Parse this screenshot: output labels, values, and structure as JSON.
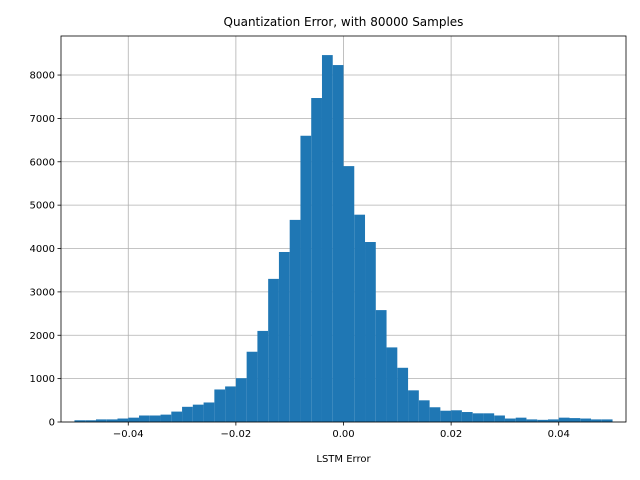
{
  "chart_data": {
    "type": "bar",
    "title": "Quantization Error, with 80000 Samples",
    "xlabel": "LSTM Error",
    "ylabel": "",
    "xlim": [
      -0.0525,
      0.0525
    ],
    "ylim": [
      0,
      8900
    ],
    "grid": true,
    "bar_color": "#1f77b4",
    "bin_width": 0.002,
    "x_ticks": [
      -0.04,
      -0.02,
      0.0,
      0.02,
      0.04
    ],
    "x_tick_labels": [
      "−0.04",
      "−0.02",
      "0.00",
      "0.02",
      "0.04"
    ],
    "y_ticks": [
      0,
      1000,
      2000,
      3000,
      4000,
      5000,
      6000,
      7000,
      8000
    ],
    "y_tick_labels": [
      "0",
      "1000",
      "2000",
      "3000",
      "4000",
      "5000",
      "6000",
      "7000",
      "8000"
    ],
    "bins": [
      {
        "x0": -0.05,
        "count": 40
      },
      {
        "x0": -0.048,
        "count": 40
      },
      {
        "x0": -0.046,
        "count": 60
      },
      {
        "x0": -0.044,
        "count": 60
      },
      {
        "x0": -0.042,
        "count": 80
      },
      {
        "x0": -0.04,
        "count": 100
      },
      {
        "x0": -0.038,
        "count": 150
      },
      {
        "x0": -0.036,
        "count": 150
      },
      {
        "x0": -0.034,
        "count": 170
      },
      {
        "x0": -0.032,
        "count": 240
      },
      {
        "x0": -0.03,
        "count": 350
      },
      {
        "x0": -0.028,
        "count": 400
      },
      {
        "x0": -0.026,
        "count": 450
      },
      {
        "x0": -0.024,
        "count": 750
      },
      {
        "x0": -0.022,
        "count": 820
      },
      {
        "x0": -0.02,
        "count": 1010
      },
      {
        "x0": -0.018,
        "count": 1620
      },
      {
        "x0": -0.016,
        "count": 2100
      },
      {
        "x0": -0.014,
        "count": 3300
      },
      {
        "x0": -0.012,
        "count": 3920
      },
      {
        "x0": -0.01,
        "count": 4660
      },
      {
        "x0": -0.008,
        "count": 6600
      },
      {
        "x0": -0.006,
        "count": 7470
      },
      {
        "x0": -0.004,
        "count": 8460
      },
      {
        "x0": -0.002,
        "count": 8230
      },
      {
        "x0": 0.0,
        "count": 5900
      },
      {
        "x0": 0.002,
        "count": 4780
      },
      {
        "x0": 0.004,
        "count": 4150
      },
      {
        "x0": 0.006,
        "count": 2580
      },
      {
        "x0": 0.008,
        "count": 1720
      },
      {
        "x0": 0.01,
        "count": 1250
      },
      {
        "x0": 0.012,
        "count": 730
      },
      {
        "x0": 0.014,
        "count": 500
      },
      {
        "x0": 0.016,
        "count": 340
      },
      {
        "x0": 0.018,
        "count": 260
      },
      {
        "x0": 0.02,
        "count": 270
      },
      {
        "x0": 0.022,
        "count": 230
      },
      {
        "x0": 0.024,
        "count": 200
      },
      {
        "x0": 0.026,
        "count": 200
      },
      {
        "x0": 0.028,
        "count": 150
      },
      {
        "x0": 0.03,
        "count": 80
      },
      {
        "x0": 0.032,
        "count": 100
      },
      {
        "x0": 0.034,
        "count": 60
      },
      {
        "x0": 0.036,
        "count": 50
      },
      {
        "x0": 0.038,
        "count": 60
      },
      {
        "x0": 0.04,
        "count": 100
      },
      {
        "x0": 0.042,
        "count": 90
      },
      {
        "x0": 0.044,
        "count": 80
      },
      {
        "x0": 0.046,
        "count": 60
      },
      {
        "x0": 0.048,
        "count": 60
      }
    ]
  }
}
